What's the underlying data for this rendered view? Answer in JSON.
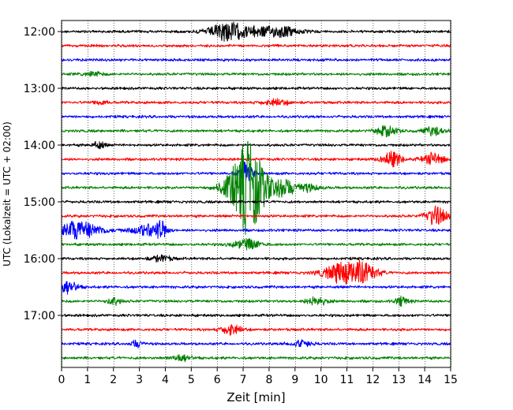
{
  "chart_data": {
    "type": "line",
    "title": "",
    "xlabel": "Zeit  [min]",
    "ylabel": "UTC (Lokalzeit = UTC + 02:00)",
    "xlim": [
      0,
      15
    ],
    "x_ticks": [
      0,
      1,
      2,
      3,
      4,
      5,
      6,
      7,
      8,
      9,
      10,
      11,
      12,
      13,
      14,
      15
    ],
    "y_tick_labels": [
      "12:00",
      "13:00",
      "14:00",
      "15:00",
      "16:00",
      "17:00"
    ],
    "grid": "vertical dotted lines at each minute",
    "trace_interval_minutes": 15,
    "trace_color_cycle": [
      "#000000",
      "#ff0000",
      "#0000ff",
      "#008000"
    ],
    "traces": [
      {
        "start": "12:00",
        "events": [
          [
            6.3,
            0.9,
            0.5
          ],
          [
            7.5,
            0.4,
            0.6
          ],
          [
            8.5,
            0.4,
            0.5
          ]
        ]
      },
      {
        "start": "12:15",
        "events": []
      },
      {
        "start": "12:30",
        "events": []
      },
      {
        "start": "12:45",
        "events": [
          [
            1.2,
            0.2,
            0.3
          ]
        ]
      },
      {
        "start": "13:00",
        "events": []
      },
      {
        "start": "13:15",
        "events": [
          [
            1.5,
            0.2,
            0.2
          ],
          [
            8.2,
            0.3,
            0.4
          ]
        ]
      },
      {
        "start": "13:30",
        "events": []
      },
      {
        "start": "13:45",
        "events": [
          [
            12.5,
            0.5,
            0.3
          ],
          [
            14.3,
            0.4,
            0.3
          ]
        ]
      },
      {
        "start": "14:00",
        "events": [
          [
            1.4,
            0.3,
            0.2
          ]
        ]
      },
      {
        "start": "14:15",
        "events": [
          [
            12.7,
            0.7,
            0.3
          ],
          [
            14.3,
            0.6,
            0.3
          ]
        ]
      },
      {
        "start": "14:30",
        "events": [
          [
            7.1,
            1.1,
            0.2
          ]
        ]
      },
      {
        "start": "14:45",
        "events": [
          [
            7.1,
            4.6,
            0.5
          ],
          [
            8.5,
            0.8,
            0.3
          ],
          [
            9.3,
            0.4,
            0.4
          ]
        ]
      },
      {
        "start": "15:00",
        "events": []
      },
      {
        "start": "15:15",
        "events": [
          [
            14.4,
            0.9,
            0.3
          ]
        ]
      },
      {
        "start": "15:30",
        "events": [
          [
            0.5,
            0.9,
            0.7
          ],
          [
            3.2,
            0.5,
            0.4
          ],
          [
            3.8,
            0.8,
            0.2
          ]
        ]
      },
      {
        "start": "15:45",
        "events": [
          [
            7.1,
            0.5,
            0.4
          ]
        ]
      },
      {
        "start": "16:00",
        "events": [
          [
            3.8,
            0.3,
            0.3
          ]
        ]
      },
      {
        "start": "16:15",
        "events": [
          [
            10.7,
            1.0,
            0.5
          ],
          [
            11.6,
            0.9,
            0.4
          ]
        ]
      },
      {
        "start": "16:30",
        "events": [
          [
            0.2,
            0.6,
            0.3
          ]
        ]
      },
      {
        "start": "16:45",
        "events": [
          [
            2.0,
            0.4,
            0.2
          ],
          [
            9.8,
            0.4,
            0.3
          ],
          [
            13.1,
            0.4,
            0.2
          ]
        ]
      },
      {
        "start": "17:00",
        "events": []
      },
      {
        "start": "17:15",
        "events": [
          [
            6.5,
            0.5,
            0.3
          ]
        ]
      },
      {
        "start": "17:30",
        "events": [
          [
            2.9,
            0.3,
            0.2
          ],
          [
            9.2,
            0.3,
            0.3
          ]
        ]
      },
      {
        "start": "17:45",
        "events": [
          [
            4.6,
            0.3,
            0.3
          ]
        ]
      }
    ]
  }
}
